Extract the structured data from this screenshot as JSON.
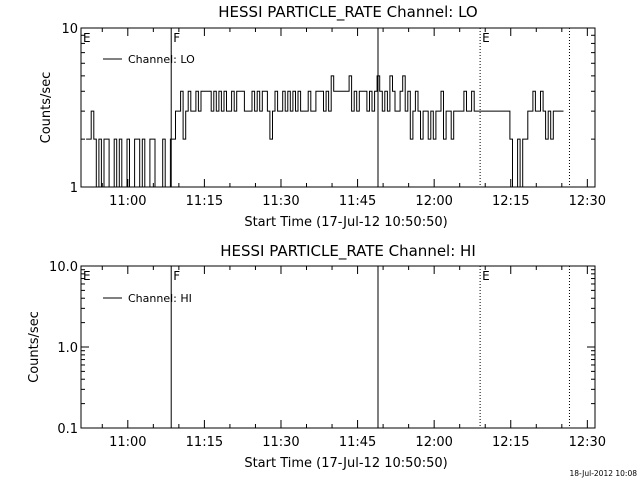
{
  "chart_data": [
    {
      "type": "line",
      "title": "HESSI PARTICLE_RATE Channel: LO",
      "xlabel": "Start Time (17-Jul-12 10:50:50)",
      "ylabel": "Counts/sec",
      "yscale": "log",
      "ylim": [
        1,
        10
      ],
      "yticks": [
        "1",
        "10"
      ],
      "xlim": [
        "10:50:50",
        "12:31:30"
      ],
      "xticks": [
        "11:00",
        "11:15",
        "11:30",
        "11:45",
        "12:00",
        "12:15",
        "12:30"
      ],
      "legend": {
        "position": "top-left",
        "entries": [
          "Channel: LO"
        ]
      },
      "event_markers": [
        {
          "label": "E",
          "time": "10:50:50",
          "style": "none"
        },
        {
          "label": "F",
          "time": "11:08:30",
          "style": "solid"
        },
        {
          "label": "",
          "time": "11:49:00",
          "style": "solid"
        },
        {
          "label": "E",
          "time": "12:09:00",
          "style": "dotted"
        },
        {
          "label": "",
          "time": "12:26:30",
          "style": "dotted"
        }
      ],
      "series": [
        {
          "name": "Channel: LO",
          "x_start": "10:50:50",
          "x_step_minutes": 0.5,
          "values": [
            null,
            null,
            2,
            2,
            3,
            2,
            1,
            2,
            1,
            2,
            2,
            1,
            1,
            2,
            1,
            2,
            1,
            1,
            2,
            1,
            1,
            2,
            2,
            1,
            2,
            1,
            1,
            2,
            2,
            1,
            1,
            1,
            2,
            1,
            1,
            2,
            2,
            3,
            3,
            4,
            2,
            3,
            4,
            3,
            3,
            4,
            3,
            4,
            4,
            4,
            4,
            3,
            4,
            3,
            4,
            3,
            4,
            3,
            3,
            4,
            3,
            4,
            4,
            4,
            3,
            3,
            3,
            4,
            3,
            4,
            3,
            4,
            4,
            3,
            2,
            3,
            4,
            3,
            3,
            4,
            3,
            4,
            3,
            4,
            3,
            4,
            3,
            3,
            3,
            4,
            3,
            3,
            4,
            4,
            4,
            3,
            4,
            3,
            5,
            4,
            4,
            4,
            4,
            4,
            4,
            5,
            3,
            4,
            3,
            4,
            4,
            4,
            3,
            4,
            3,
            4,
            5,
            4,
            3,
            4,
            3,
            5,
            4,
            3,
            3,
            4,
            5,
            3,
            4,
            2,
            3,
            4,
            3,
            2,
            3,
            3,
            2,
            3,
            2,
            3,
            3,
            4,
            2,
            3,
            3,
            2,
            3,
            3,
            3,
            3,
            4,
            3,
            3,
            4,
            3,
            3,
            3,
            3,
            3,
            3,
            3,
            3,
            3,
            3,
            3,
            3,
            3,
            3,
            2,
            1,
            1,
            2,
            1,
            2,
            2,
            3,
            3,
            4,
            3,
            3,
            4,
            3,
            2,
            3,
            2,
            3,
            3,
            3,
            3
          ]
        }
      ]
    },
    {
      "type": "line",
      "title": "HESSI PARTICLE_RATE Channel: HI",
      "xlabel": "Start Time (17-Jul-12 10:50:50)",
      "ylabel": "Counts/sec",
      "yscale": "log",
      "ylim": [
        0.1,
        10
      ],
      "yticks": [
        "0.1",
        "1.0",
        "10.0"
      ],
      "xlim": [
        "10:50:50",
        "12:31:30"
      ],
      "xticks": [
        "11:00",
        "11:15",
        "11:30",
        "11:45",
        "12:00",
        "12:15",
        "12:30"
      ],
      "legend": {
        "position": "top-left",
        "entries": [
          "Channel: HI"
        ]
      },
      "event_markers": [
        {
          "label": "E",
          "time": "10:50:50",
          "style": "none"
        },
        {
          "label": "F",
          "time": "11:08:30",
          "style": "solid"
        },
        {
          "label": "",
          "time": "11:49:00",
          "style": "solid"
        },
        {
          "label": "E",
          "time": "12:09:00",
          "style": "dotted"
        },
        {
          "label": "",
          "time": "12:26:30",
          "style": "dotted"
        }
      ],
      "series": [
        {
          "name": "Channel: HI",
          "values": []
        }
      ]
    }
  ],
  "timestamp": "18-Jul-2012 10:08"
}
